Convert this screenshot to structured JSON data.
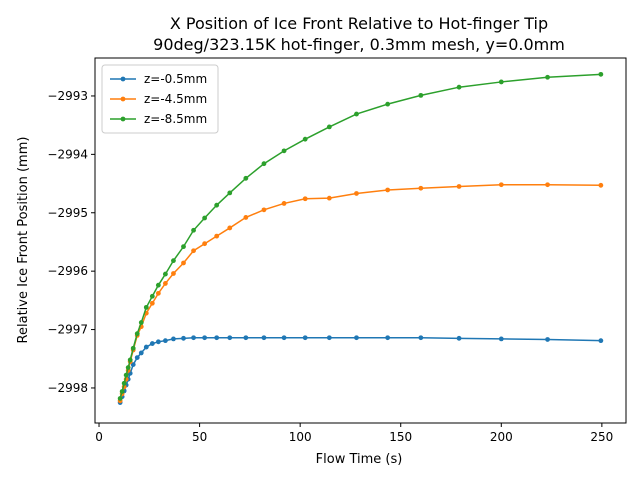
{
  "chart_data": {
    "type": "line",
    "title_line1": "X Position of Ice Front Relative to Hot-finger Tip",
    "title_line2": "90deg/323.15K hot-finger, 0.3mm mesh, y=0.0mm",
    "xlabel": "Flow Time (s)",
    "ylabel": "Relative Ice Front Position (mm)",
    "xlim": [
      -2,
      262
    ],
    "ylim": [
      -2998.6,
      -2992.35
    ],
    "xticks": [
      0,
      50,
      100,
      150,
      200,
      250
    ],
    "xtick_labels": [
      "0",
      "50",
      "100",
      "150",
      "200",
      "250"
    ],
    "yticks": [
      -2998,
      -2997,
      -2996,
      -2995,
      -2994,
      -2993
    ],
    "ytick_labels": [
      "−2998",
      "−2997",
      "−2996",
      "−2995",
      "−2994",
      "−2993"
    ],
    "grid": false,
    "legend_position": "top-left",
    "x": [
      10.5,
      11.5,
      12.5,
      13.5,
      14.5,
      15.5,
      17,
      19,
      21,
      23.5,
      26.5,
      29.5,
      33,
      37,
      42,
      47,
      52.5,
      58.5,
      65,
      73,
      82,
      92,
      102.5,
      114.5,
      128,
      143.5,
      160,
      179,
      200,
      223,
      249.5
    ],
    "series": [
      {
        "name": "z=-0.5mm",
        "color": "#1f77b4",
        "values": [
          -2998.25,
          -2998.15,
          -2998.05,
          -2997.95,
          -2997.85,
          -2997.75,
          -2997.6,
          -2997.48,
          -2997.4,
          -2997.3,
          -2997.24,
          -2997.21,
          -2997.19,
          -2997.16,
          -2997.15,
          -2997.14,
          -2997.14,
          -2997.14,
          -2997.14,
          -2997.14,
          -2997.14,
          -2997.14,
          -2997.14,
          -2997.14,
          -2997.14,
          -2997.14,
          -2997.14,
          -2997.15,
          -2997.16,
          -2997.17,
          -2997.19
        ]
      },
      {
        "name": "z=-4.5mm",
        "color": "#ff7f0e",
        "values": [
          -2998.22,
          -2998.1,
          -2997.98,
          -2997.85,
          -2997.7,
          -2997.55,
          -2997.35,
          -2997.1,
          -2996.95,
          -2996.72,
          -2996.55,
          -2996.38,
          -2996.21,
          -2996.04,
          -2995.86,
          -2995.65,
          -2995.53,
          -2995.4,
          -2995.26,
          -2995.08,
          -2994.95,
          -2994.84,
          -2994.76,
          -2994.75,
          -2994.67,
          -2994.61,
          -2994.58,
          -2994.55,
          -2994.52,
          -2994.52,
          -2994.53
        ]
      },
      {
        "name": "z=-8.5mm",
        "color": "#2ca02c",
        "values": [
          -2998.18,
          -2998.06,
          -2997.92,
          -2997.78,
          -2997.65,
          -2997.52,
          -2997.32,
          -2997.07,
          -2996.88,
          -2996.62,
          -2996.43,
          -2996.24,
          -2996.05,
          -2995.82,
          -2995.58,
          -2995.3,
          -2995.09,
          -2994.87,
          -2994.66,
          -2994.41,
          -2994.16,
          -2993.94,
          -2993.74,
          -2993.53,
          -2993.31,
          -2993.14,
          -2992.99,
          -2992.85,
          -2992.76,
          -2992.68,
          -2992.63
        ]
      }
    ]
  }
}
